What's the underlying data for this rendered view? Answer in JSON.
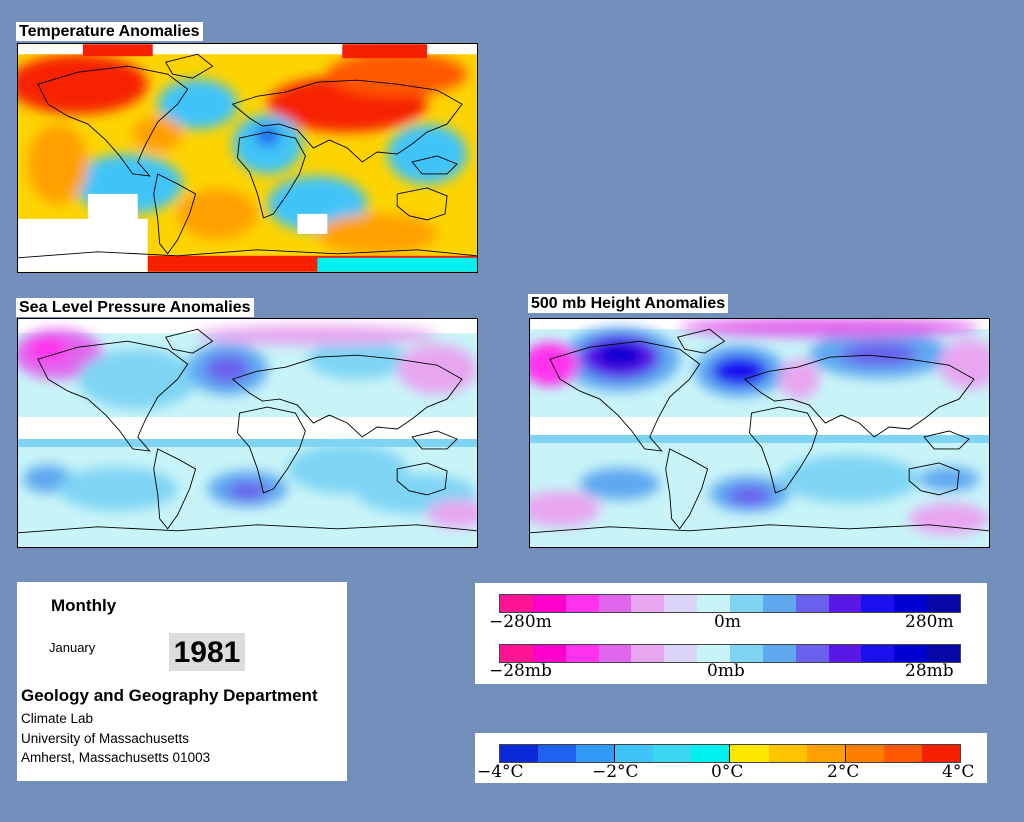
{
  "maps": {
    "temperature": {
      "title": "Temperature Anomalies"
    },
    "slp": {
      "title": "Sea Level Pressure Anomalies"
    },
    "height500": {
      "title": "500 mb Height Anomalies"
    }
  },
  "info": {
    "period": "Monthly",
    "month": "January",
    "year": "1981",
    "department": "Geology and Geography Department",
    "lab": "Climate Lab",
    "university": "University of Massachusetts",
    "address": "Amherst, Massachusetts 01003"
  },
  "legends": {
    "height": {
      "min_label": "−280m",
      "mid_label": "0m",
      "max_label": "280m"
    },
    "pressure": {
      "min_label": "−28mb",
      "mid_label": "0mb",
      "max_label": "28mb"
    },
    "temperature": {
      "labels": [
        "−4°C",
        "−2°C",
        "0°C",
        "2°C",
        "4°C"
      ]
    }
  },
  "colors": {
    "background": "#7390bd",
    "pressure_scale": [
      "#ff1493",
      "#ff00cc",
      "#ff33ee",
      "#e066ee",
      "#e8a6f0",
      "#dcd4f8",
      "#c8f4f8",
      "#7fd4f4",
      "#5fa8f0",
      "#6a60ee",
      "#5a18e8",
      "#1a10f0",
      "#0000d0",
      "#0808a8"
    ],
    "temperature_scale": [
      "#0a2ad8",
      "#1f62f0",
      "#2f9af8",
      "#40c4f8",
      "#3ad8f0",
      "#00f0f0",
      "#ffe800",
      "#ffc400",
      "#ffa000",
      "#ff7e00",
      "#ff5800",
      "#f62000"
    ]
  }
}
